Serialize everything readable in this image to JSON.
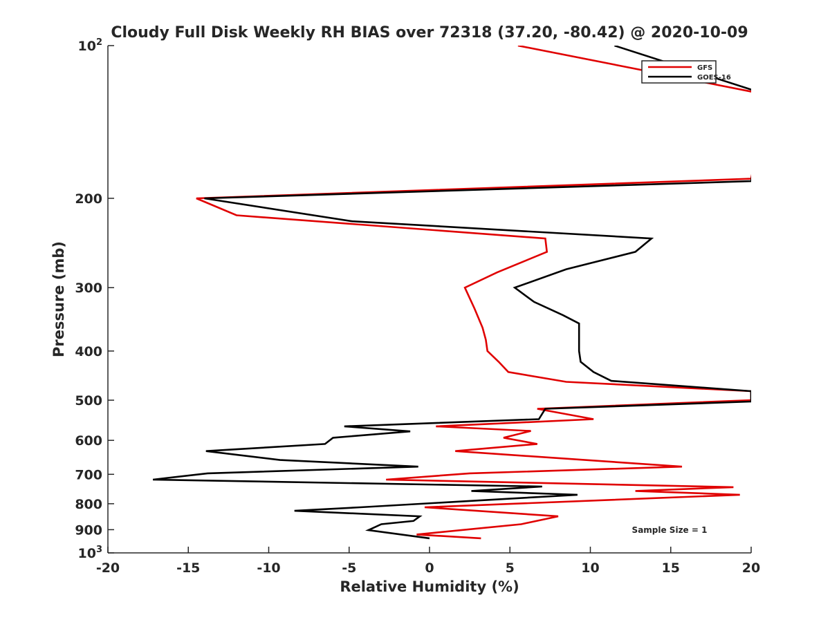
{
  "chart_data": {
    "type": "line",
    "title": "Cloudy Full Disk Weekly RH BIAS over 72318 (37.20, -80.42) @ 2020-10-09",
    "xlabel": "Relative Humidity (%)",
    "ylabel": "Pressure (mb)",
    "xlim": [
      -20,
      20
    ],
    "ylim": [
      100,
      1000
    ],
    "yscale": "log",
    "ydirection": "reverse",
    "xticks": [
      -20,
      -15,
      -10,
      -5,
      0,
      5,
      10,
      15,
      20
    ],
    "xtick_labels": [
      "-20",
      "-15",
      "-10",
      "-5",
      "0",
      "5",
      "10",
      "15",
      "20"
    ],
    "yticks": [
      100,
      200,
      300,
      400,
      500,
      600,
      700,
      800,
      900,
      1000
    ],
    "ytick_labels": [
      {
        "base": "10",
        "exp": "2"
      },
      {
        "base": "200"
      },
      {
        "base": "300"
      },
      {
        "base": "400"
      },
      {
        "base": "500"
      },
      {
        "base": "600"
      },
      {
        "base": "700"
      },
      {
        "base": "800"
      },
      {
        "base": "900"
      },
      {
        "base": "10",
        "exp": "3"
      }
    ],
    "legend_position": "top-right",
    "annotation": "Sample Size = 1",
    "series": [
      {
        "name": "GFS",
        "color": "#e00000",
        "points": [
          [
            5.5,
            100
          ],
          [
            21,
            125
          ],
          [
            20,
            183
          ],
          [
            -14.5,
            200
          ],
          [
            -12,
            216
          ],
          [
            7.2,
            240
          ],
          [
            7.3,
            255
          ],
          [
            4.2,
            280
          ],
          [
            2.2,
            300
          ],
          [
            2.8,
            330
          ],
          [
            3.3,
            360
          ],
          [
            3.5,
            380
          ],
          [
            3.6,
            400
          ],
          [
            4.3,
            420
          ],
          [
            4.9,
            440
          ],
          [
            8.5,
            460
          ],
          [
            20,
            480
          ],
          [
            20,
            500
          ],
          [
            6.7,
            520
          ],
          [
            10.2,
            545
          ],
          [
            0.4,
            563
          ],
          [
            6.3,
            575
          ],
          [
            4.6,
            593
          ],
          [
            6.7,
            610
          ],
          [
            1.6,
            630
          ],
          [
            15.7,
            676
          ],
          [
            2.5,
            697
          ],
          [
            -2.7,
            717
          ],
          [
            18.9,
            742
          ],
          [
            12.8,
            755
          ],
          [
            19.3,
            768
          ],
          [
            -0.3,
            813
          ],
          [
            8.0,
            847
          ],
          [
            5.7,
            878
          ],
          [
            -0.8,
            920
          ],
          [
            3.2,
            936
          ]
        ]
      },
      {
        "name": "GOES-16",
        "color": "#000000",
        "points": [
          [
            11.5,
            100
          ],
          [
            21,
            125
          ],
          [
            20,
            185
          ],
          [
            -14,
            200
          ],
          [
            -4.8,
            222
          ],
          [
            13.8,
            240
          ],
          [
            12.8,
            255
          ],
          [
            8.5,
            276
          ],
          [
            5.3,
            300
          ],
          [
            6.5,
            320
          ],
          [
            8.3,
            340
          ],
          [
            9.3,
            353
          ],
          [
            9.3,
            380
          ],
          [
            9.3,
            400
          ],
          [
            9.4,
            420
          ],
          [
            10.2,
            440
          ],
          [
            11.3,
            458
          ],
          [
            20,
            480
          ],
          [
            20,
            503
          ],
          [
            7.2,
            520
          ],
          [
            6.8,
            545
          ],
          [
            -5.3,
            563
          ],
          [
            -1.2,
            576
          ],
          [
            -6,
            593
          ],
          [
            -6.5,
            610
          ],
          [
            -13.9,
            630
          ],
          [
            -9.3,
            656
          ],
          [
            -0.7,
            676
          ],
          [
            -13.8,
            697
          ],
          [
            -17.2,
            717
          ],
          [
            7.0,
            740
          ],
          [
            2.6,
            755
          ],
          [
            9.2,
            768
          ],
          [
            -4.3,
            813
          ],
          [
            -8.4,
            826
          ],
          [
            -0.6,
            847
          ],
          [
            -1.0,
            865
          ],
          [
            -3,
            878
          ],
          [
            -3.8,
            902
          ],
          [
            0,
            936
          ]
        ]
      }
    ]
  }
}
